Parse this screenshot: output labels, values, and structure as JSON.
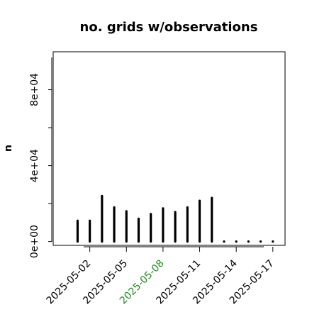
{
  "chart_data": {
    "type": "bar",
    "title": "no. grids w/observations",
    "xlabel": "",
    "ylabel": "n",
    "ylim": [
      -2000,
      100000
    ],
    "y_ticks": [
      0,
      40000,
      80000
    ],
    "y_tick_labels": [
      "0e+00",
      "4e+04",
      "8e+04"
    ],
    "x_ticks": [
      "2025-05-02",
      "2025-05-05",
      "2025-05-08",
      "2025-05-11",
      "2025-05-14",
      "2025-05-17"
    ],
    "x_tick_labels": [
      "2025-05-02",
      "2025-05-05",
      "2025-05-08",
      "2025-05-11",
      "2025-05-14",
      "2025-05-17"
    ],
    "highlight_tick": "2025-05-08",
    "x_range": [
      "2025-04-29",
      "2025-05-18"
    ],
    "categories": [
      "2025-05-01",
      "2025-05-02",
      "2025-05-03",
      "2025-05-04",
      "2025-05-05",
      "2025-05-06",
      "2025-05-07",
      "2025-05-08",
      "2025-05-09",
      "2025-05-10",
      "2025-05-11",
      "2025-05-12",
      "2025-05-13",
      "2025-05-14",
      "2025-05-15",
      "2025-05-16",
      "2025-05-17"
    ],
    "values": [
      11000,
      11000,
      24000,
      18000,
      16000,
      12000,
      14500,
      17500,
      15500,
      18000,
      21500,
      23000,
      0,
      0,
      0,
      0,
      0
    ],
    "grid": false,
    "colors": {
      "bars": "#000000",
      "highlight": "#228B22"
    }
  }
}
